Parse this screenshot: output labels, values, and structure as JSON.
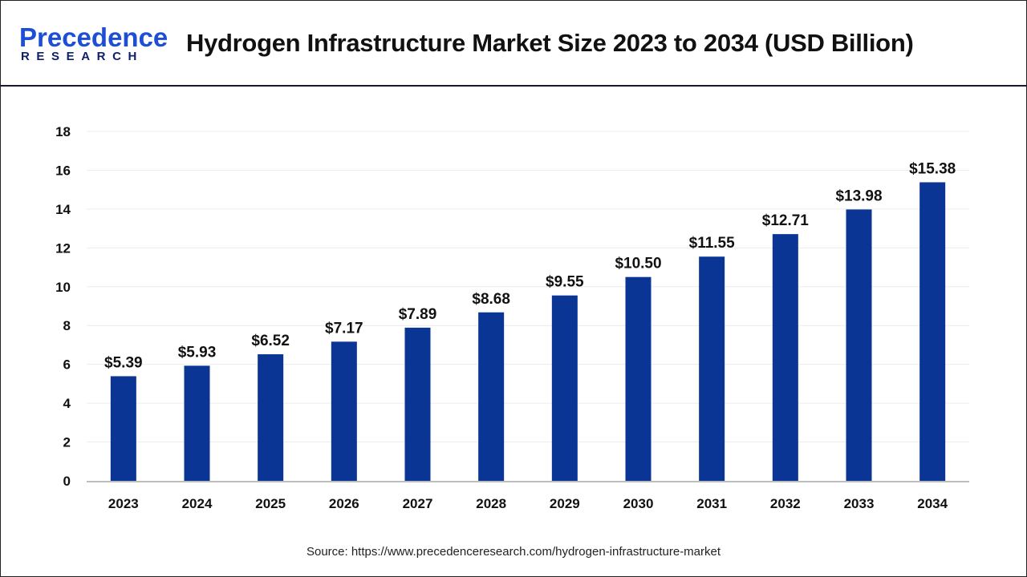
{
  "header": {
    "logo_text": "Precedence",
    "logo_subtext": "RESEARCH",
    "title": "Hydrogen Infrastructure Market Size 2023 to 2034 (USD Billion)"
  },
  "chart_data": {
    "type": "bar",
    "title": "Hydrogen Infrastructure Market Size 2023 to 2034 (USD Billion)",
    "categories": [
      "2023",
      "2024",
      "2025",
      "2026",
      "2027",
      "2028",
      "2029",
      "2030",
      "2031",
      "2032",
      "2033",
      "2034"
    ],
    "values": [
      5.39,
      5.93,
      6.52,
      7.17,
      7.89,
      8.68,
      9.55,
      10.5,
      11.55,
      12.71,
      13.98,
      15.38
    ],
    "data_labels": [
      "$5.39",
      "$5.93",
      "$6.52",
      "$7.17",
      "$7.89",
      "$8.68",
      "$9.55",
      "$10.50",
      "$11.55",
      "$12.71",
      "$13.98",
      "$15.38"
    ],
    "yticks": [
      "0",
      "2",
      "4",
      "6",
      "8",
      "10",
      "12",
      "14",
      "16",
      "18"
    ],
    "ylim": [
      0,
      18
    ],
    "xlabel": "",
    "ylabel": "",
    "grid": true,
    "bar_color": "#0a3595"
  },
  "source": "Source: https://www.precedenceresearch.com/hydrogen-infrastructure-market"
}
